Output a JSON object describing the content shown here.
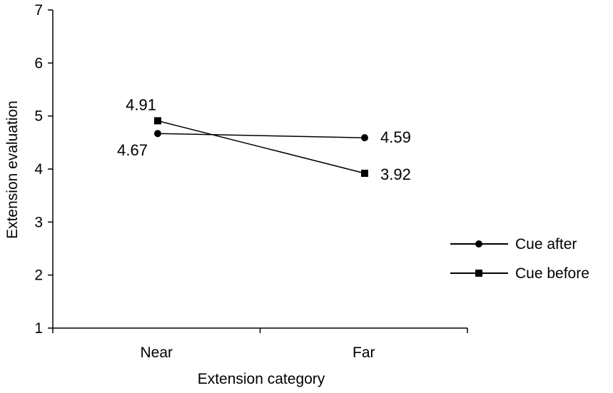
{
  "chart_data": {
    "type": "line",
    "title": "",
    "xlabel": "Extension category",
    "ylabel": "Extension evaluation",
    "categories": [
      "Near",
      "Far"
    ],
    "ylim": [
      1,
      7
    ],
    "yticks": [
      "1",
      "2",
      "3",
      "4",
      "5",
      "6",
      "7"
    ],
    "grid": false,
    "legend_position": "right",
    "series": [
      {
        "name": "Cue after",
        "marker": "circle",
        "values": [
          4.67,
          4.59
        ],
        "labels": [
          "4.67",
          "4.59"
        ],
        "color": "#000000"
      },
      {
        "name": "Cue before",
        "marker": "square",
        "values": [
          4.91,
          3.92
        ],
        "labels": [
          "4.91",
          "3.92"
        ],
        "color": "#000000"
      }
    ]
  }
}
